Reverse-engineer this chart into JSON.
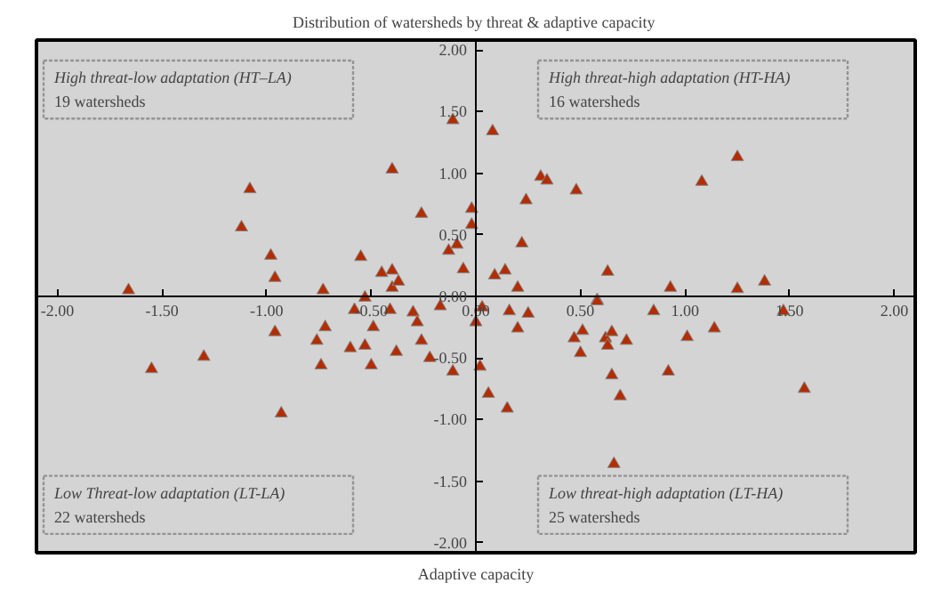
{
  "chart_data": {
    "type": "scatter",
    "title": "Distribution of  watersheds by threat & adaptive capacity",
    "xlabel": "Adaptive capacity",
    "annotations": [
      "High threat-low adaptation (HT–LA)",
      "19 watersheds",
      "High threat-high adaptation (HT-HA)",
      "16 watersheds",
      "Low Threat-low adaptation (LT-LA)",
      "22 watersheds",
      "Low threat-high adaptation (LT-HA)",
      "25 watersheds"
    ],
    "x": [
      -1.66,
      -1.12,
      -1.08,
      -0.98,
      -0.96,
      -0.73,
      -0.55,
      -0.53,
      -0.45,
      -0.4,
      -0.4,
      -0.4,
      -0.37,
      -0.26,
      -0.13,
      -0.09,
      -0.06,
      -0.02,
      -0.02,
      -0.11,
      0.08,
      0.09,
      0.14,
      0.2,
      0.22,
      0.24,
      0.31,
      0.34,
      0.48,
      0.58,
      0.63,
      0.93,
      1.08,
      1.25,
      1.25,
      1.38,
      -0.58,
      -0.96,
      -0.72,
      -0.76,
      -0.49,
      -0.41,
      -0.3,
      -0.28,
      -0.17,
      -0.26,
      -0.6,
      -0.53,
      -0.38,
      -0.22,
      -0.74,
      -0.5,
      -0.11,
      -1.3,
      -1.55,
      -0.93,
      0.0,
      0.03,
      0.02,
      0.06,
      0.15,
      0.16,
      0.2,
      0.25,
      0.58,
      0.47,
      0.51,
      0.5,
      0.62,
      0.63,
      0.65,
      0.72,
      0.65,
      0.69,
      0.66,
      0.85,
      0.92,
      1.01,
      1.14,
      1.47,
      1.57
    ],
    "values": [
      0.05,
      0.56,
      0.87,
      0.33,
      0.15,
      0.05,
      0.32,
      -0.01,
      0.19,
      0.21,
      0.07,
      1.03,
      0.12,
      0.67,
      0.37,
      0.42,
      0.22,
      0.58,
      0.71,
      1.43,
      1.34,
      0.17,
      0.21,
      0.07,
      0.43,
      0.78,
      0.97,
      0.94,
      0.86,
      -0.03,
      0.2,
      0.07,
      0.93,
      1.13,
      0.06,
      0.12,
      -0.11,
      -0.29,
      -0.25,
      -0.36,
      -0.25,
      -0.11,
      -0.13,
      -0.21,
      -0.08,
      -0.36,
      -0.42,
      -0.4,
      -0.45,
      -0.5,
      -0.56,
      -0.56,
      -0.61,
      -0.49,
      -0.59,
      -0.95,
      -0.21,
      -0.09,
      -0.57,
      -0.79,
      -0.91,
      -0.12,
      -0.26,
      -0.14,
      -0.04,
      -0.34,
      -0.28,
      -0.46,
      -0.34,
      -0.4,
      -0.29,
      -0.36,
      -0.64,
      -0.81,
      -1.36,
      -0.12,
      -0.61,
      -0.33,
      -0.26,
      -0.12,
      -0.75
    ],
    "color": "#b32d00",
    "marker": "triangle",
    "xlim": [
      -2.1,
      2.1
    ],
    "ylim": [
      -2.08,
      2.08
    ],
    "xticks": [
      {
        "value": -2,
        "label": "-2.00"
      },
      {
        "value": -1.5,
        "label": "-1.50"
      },
      {
        "value": -1,
        "label": "-1.00"
      },
      {
        "value": -0.5,
        "label": "-0.50"
      },
      {
        "value": 0,
        "label": "0.00"
      },
      {
        "value": 0.5,
        "label": "0.50"
      },
      {
        "value": 1,
        "label": "1.00"
      },
      {
        "value": 1.5,
        "label": "1.50"
      },
      {
        "value": 2,
        "label": "2.00"
      }
    ],
    "yticks": [
      {
        "value": -2,
        "label": "-2.00"
      },
      {
        "value": -1.5,
        "label": "-1.50"
      },
      {
        "value": -1,
        "label": "-1.00"
      },
      {
        "value": -0.5,
        "label": "-0.50"
      },
      {
        "value": 0,
        "label": "0.00"
      },
      {
        "value": 0.5,
        "label": "0.50"
      },
      {
        "value": 1,
        "label": "1.00"
      },
      {
        "value": 1.5,
        "label": "1.50"
      },
      {
        "value": 2,
        "label": "2.00"
      }
    ],
    "grid": false
  }
}
